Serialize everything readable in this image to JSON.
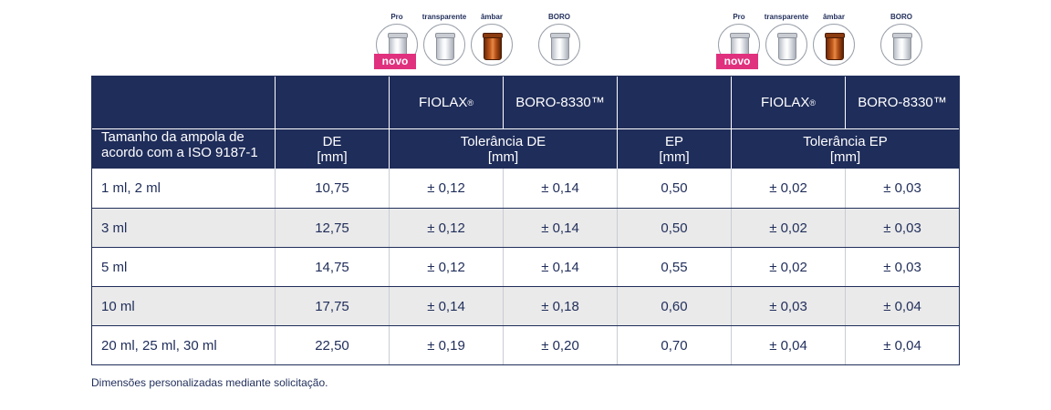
{
  "icon_groups": [
    {
      "vials": [
        {
          "label": "Pro",
          "kind": "clear",
          "badge": "novo"
        },
        {
          "label": "transparente",
          "kind": "clear",
          "badge": ""
        },
        {
          "label": "âmbar",
          "kind": "amber",
          "badge": ""
        },
        {
          "label": "BORO",
          "kind": "clear",
          "badge": ""
        }
      ]
    },
    {
      "vials": [
        {
          "label": "Pro",
          "kind": "clear",
          "badge": "novo"
        },
        {
          "label": "transparente",
          "kind": "clear",
          "badge": ""
        },
        {
          "label": "âmbar",
          "kind": "amber",
          "badge": ""
        },
        {
          "label": "BORO",
          "kind": "clear",
          "badge": ""
        }
      ]
    }
  ],
  "table": {
    "header_top": {
      "fiolax": "FIOLAX",
      "fiolax_mark": "®",
      "boro": "BORO-8330™"
    },
    "header_bottom": {
      "size_label": "Tamanho da ampola de acordo com a ISO 9187-1",
      "de": "DE",
      "de_unit": "[mm]",
      "tol_de": "Tolerância DE",
      "tol_de_unit": "[mm]",
      "ep": "EP",
      "ep_unit": "[mm]",
      "tol_ep": "Tolerância EP",
      "tol_ep_unit": "[mm]"
    },
    "rows": [
      {
        "size": "1 ml, 2 ml",
        "de": "10,75",
        "tol_de_fiolax": "± 0,12",
        "tol_de_boro": "± 0,14",
        "ep": "0,50",
        "tol_ep_fiolax": "± 0,02",
        "tol_ep_boro": "± 0,03"
      },
      {
        "size": "3 ml",
        "de": "12,75",
        "tol_de_fiolax": "± 0,12",
        "tol_de_boro": "± 0,14",
        "ep": "0,50",
        "tol_ep_fiolax": "± 0,02",
        "tol_ep_boro": "± 0,03"
      },
      {
        "size": "5 ml",
        "de": "14,75",
        "tol_de_fiolax": "± 0,12",
        "tol_de_boro": "± 0,14",
        "ep": "0,55",
        "tol_ep_fiolax": "± 0,02",
        "tol_ep_boro": "± 0,03"
      },
      {
        "size": "10 ml",
        "de": "17,75",
        "tol_de_fiolax": "± 0,14",
        "tol_de_boro": "± 0,18",
        "ep": "0,60",
        "tol_ep_fiolax": "± 0,03",
        "tol_ep_boro": "± 0,04"
      },
      {
        "size": "20 ml, 25 ml, 30 ml",
        "de": "22,50",
        "tol_de_fiolax": "± 0,19",
        "tol_de_boro": "± 0,20",
        "ep": "0,70",
        "tol_ep_fiolax": "± 0,04",
        "tol_ep_boro": "± 0,04"
      }
    ]
  },
  "footnote": "Dimensões personalizadas mediante solicitação.",
  "colors": {
    "header_bg": "#1f2d5a",
    "badge": "#e0317e",
    "alt_row": "#eaeaea",
    "amber": "#c45a1c"
  }
}
